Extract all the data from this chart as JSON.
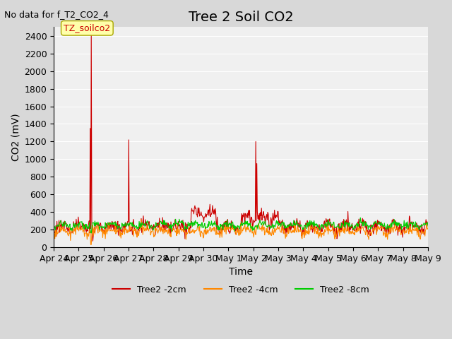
{
  "title": "Tree 2 Soil CO2",
  "subtitle": "No data for f_T2_CO2_4",
  "ylabel": "CO2 (mV)",
  "xlabel": "Time",
  "annotation": "TZ_soilco2",
  "ylim": [
    0,
    2500
  ],
  "yticks": [
    0,
    200,
    400,
    600,
    800,
    1000,
    1200,
    1400,
    1600,
    1800,
    2000,
    2200,
    2400
  ],
  "bg_color": "#d8d8d8",
  "plot_bg": "#f0f0f0",
  "line_colors": {
    "2cm": "#cc0000",
    "4cm": "#ff8800",
    "8cm": "#00cc00"
  },
  "legend_labels": [
    "Tree2 -2cm",
    "Tree2 -4cm",
    "Tree2 -8cm"
  ],
  "x_tick_labels": [
    "Apr 24",
    "Apr 25",
    "Apr 26",
    "Apr 27",
    "Apr 28",
    "Apr 29",
    "Apr 30",
    "May 1",
    "May 2",
    "May 3",
    "May 4",
    "May 5",
    "May 6",
    "May 7",
    "May 8",
    "May 9"
  ],
  "title_fontsize": 14,
  "axis_fontsize": 10,
  "tick_fontsize": 9
}
